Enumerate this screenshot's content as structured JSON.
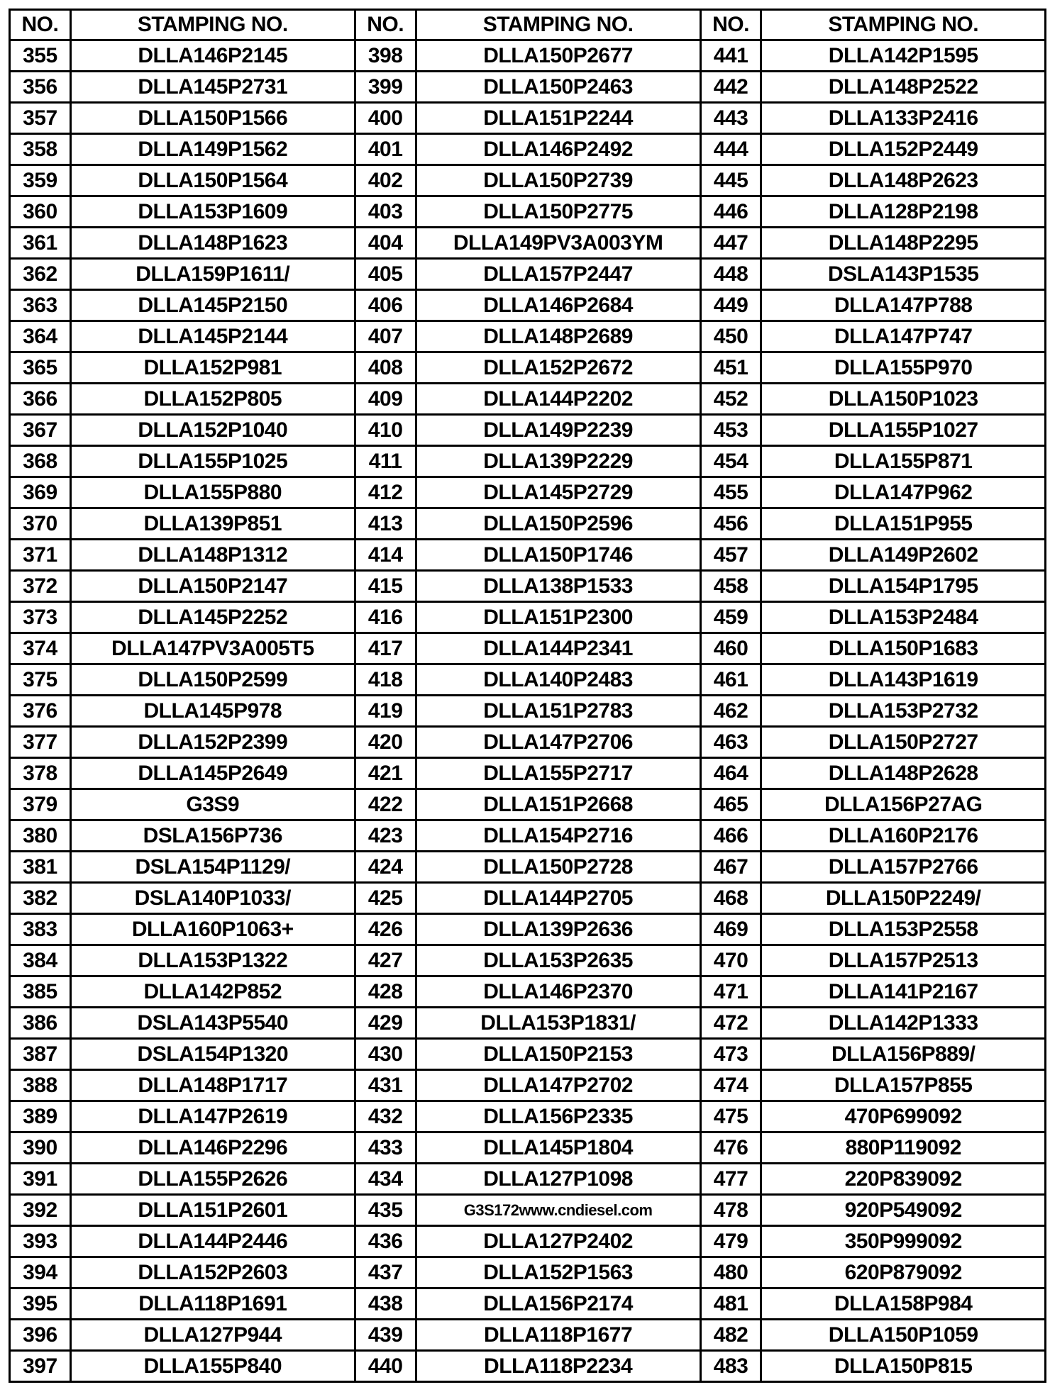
{
  "headers": [
    "NO.",
    "STAMPING NO.",
    "NO.",
    "STAMPING NO.",
    "NO.",
    "STAMPING NO."
  ],
  "rows": [
    [
      "355",
      "DLLA146P2145",
      "398",
      "DLLA150P2677",
      "441",
      "DLLA142P1595"
    ],
    [
      "356",
      "DLLA145P2731",
      "399",
      "DLLA150P2463",
      "442",
      "DLLA148P2522"
    ],
    [
      "357",
      "DLLA150P1566",
      "400",
      "DLLA151P2244",
      "443",
      "DLLA133P2416"
    ],
    [
      "358",
      "DLLA149P1562",
      "401",
      "DLLA146P2492",
      "444",
      "DLLA152P2449"
    ],
    [
      "359",
      "DLLA150P1564",
      "402",
      "DLLA150P2739",
      "445",
      "DLLA148P2623"
    ],
    [
      "360",
      "DLLA153P1609",
      "403",
      "DLLA150P2775",
      "446",
      "DLLA128P2198"
    ],
    [
      "361",
      "DLLA148P1623",
      "404",
      "DLLA149PV3A003YM",
      "447",
      "DLLA148P2295"
    ],
    [
      "362",
      "DLLA159P1611/",
      "405",
      "DLLA157P2447",
      "448",
      "DSLA143P1535"
    ],
    [
      "363",
      "DLLA145P2150",
      "406",
      "DLLA146P2684",
      "449",
      "DLLA147P788"
    ],
    [
      "364",
      "DLLA145P2144",
      "407",
      "DLLA148P2689",
      "450",
      "DLLA147P747"
    ],
    [
      "365",
      "DLLA152P981",
      "408",
      "DLLA152P2672",
      "451",
      "DLLA155P970"
    ],
    [
      "366",
      "DLLA152P805",
      "409",
      "DLLA144P2202",
      "452",
      "DLLA150P1023"
    ],
    [
      "367",
      "DLLA152P1040",
      "410",
      "DLLA149P2239",
      "453",
      "DLLA155P1027"
    ],
    [
      "368",
      "DLLA155P1025",
      "411",
      "DLLA139P2229",
      "454",
      "DLLA155P871"
    ],
    [
      "369",
      "DLLA155P880",
      "412",
      "DLLA145P2729",
      "455",
      "DLLA147P962"
    ],
    [
      "370",
      "DLLA139P851",
      "413",
      "DLLA150P2596",
      "456",
      "DLLA151P955"
    ],
    [
      "371",
      "DLLA148P1312",
      "414",
      "DLLA150P1746",
      "457",
      "DLLA149P2602"
    ],
    [
      "372",
      "DLLA150P2147",
      "415",
      "DLLA138P1533",
      "458",
      "DLLA154P1795"
    ],
    [
      "373",
      "DLLA145P2252",
      "416",
      "DLLA151P2300",
      "459",
      "DLLA153P2484"
    ],
    [
      "374",
      "DLLA147PV3A005T5",
      "417",
      "DLLA144P2341",
      "460",
      "DLLA150P1683"
    ],
    [
      "375",
      "DLLA150P2599",
      "418",
      "DLLA140P2483",
      "461",
      "DLLA143P1619"
    ],
    [
      "376",
      "DLLA145P978",
      "419",
      "DLLA151P2783",
      "462",
      "DLLA153P2732"
    ],
    [
      "377",
      "DLLA152P2399",
      "420",
      "DLLA147P2706",
      "463",
      "DLLA150P2727"
    ],
    [
      "378",
      "DLLA145P2649",
      "421",
      "DLLA155P2717",
      "464",
      "DLLA148P2628"
    ],
    [
      "379",
      "G3S9",
      "422",
      "DLLA151P2668",
      "465",
      "DLLA156P27AG"
    ],
    [
      "380",
      "DSLA156P736",
      "423",
      "DLLA154P2716",
      "466",
      "DLLA160P2176"
    ],
    [
      "381",
      "DSLA154P1129/",
      "424",
      "DLLA150P2728",
      "467",
      "DLLA157P2766"
    ],
    [
      "382",
      "DSLA140P1033/",
      "425",
      "DLLA144P2705",
      "468",
      "DLLA150P2249/"
    ],
    [
      "383",
      "DLLA160P1063+",
      "426",
      "DLLA139P2636",
      "469",
      "DLLA153P2558"
    ],
    [
      "384",
      "DLLA153P1322",
      "427",
      "DLLA153P2635",
      "470",
      "DLLA157P2513"
    ],
    [
      "385",
      "DLLA142P852",
      "428",
      "DLLA146P2370",
      "471",
      "DLLA141P2167"
    ],
    [
      "386",
      "DSLA143P5540",
      "429",
      "DLLA153P1831/",
      "472",
      "DLLA142P1333"
    ],
    [
      "387",
      "DSLA154P1320",
      "430",
      "DLLA150P2153",
      "473",
      "DLLA156P889/"
    ],
    [
      "388",
      "DLLA148P1717",
      "431",
      "DLLA147P2702",
      "474",
      "DLLA157P855"
    ],
    [
      "389",
      "DLLA147P2619",
      "432",
      "DLLA156P2335",
      "475",
      "470P699092"
    ],
    [
      "390",
      "DLLA146P2296",
      "433",
      "DLLA145P1804",
      "476",
      "880P119092"
    ],
    [
      "391",
      "DLLA155P2626",
      "434",
      "DLLA127P1098",
      "477",
      "220P839092"
    ],
    [
      "392",
      "DLLA151P2601",
      "435",
      "G3S172www.cndiesel.com",
      "478",
      "920P549092"
    ],
    [
      "393",
      "DLLA144P2446",
      "436",
      "DLLA127P2402",
      "479",
      "350P999092"
    ],
    [
      "394",
      "DLLA152P2603",
      "437",
      "DLLA152P1563",
      "480",
      "620P879092"
    ],
    [
      "395",
      "DLLA118P1691",
      "438",
      "DLLA156P2174",
      "481",
      "DLLA158P984"
    ],
    [
      "396",
      "DLLA127P944",
      "439",
      "DLLA118P1677",
      "482",
      "DLLA150P1059"
    ],
    [
      "397",
      "DLLA155P840",
      "440",
      "DLLA118P2234",
      "483",
      "DLLA150P815"
    ]
  ]
}
